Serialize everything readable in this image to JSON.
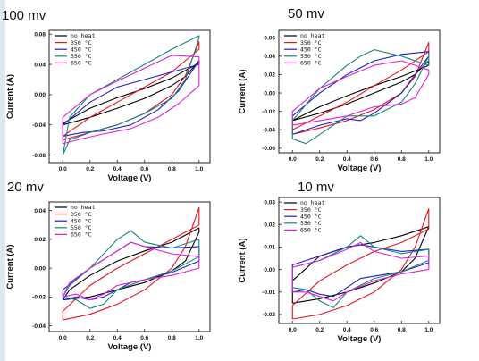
{
  "chart_data": [
    {
      "type": "line",
      "title": "100 mv",
      "xlabel": "Voltage (V)",
      "ylabel": "Current (A)",
      "xlim": [
        -0.1,
        1.08
      ],
      "ylim": [
        -0.09,
        0.085
      ],
      "xticks": [
        0.0,
        0.2,
        0.4,
        0.6,
        0.8,
        1.0
      ],
      "xtick_labels": [
        "0.0",
        "0.2",
        "0.4",
        "0.6",
        "0.8",
        "1.0"
      ],
      "yticks": [
        -0.08,
        -0.04,
        0.0,
        0.04,
        0.08
      ],
      "ytick_labels": [
        "-0.08",
        "-0.04",
        "0.00",
        "0.04",
        "0.08"
      ],
      "legend_position": "top-left",
      "series": [
        {
          "name": "no heat",
          "color": "#000000",
          "x": [
            0.0,
            0.2,
            0.4,
            0.6,
            0.8,
            0.9,
            1.0,
            1.0,
            0.8,
            0.6,
            0.4,
            0.2,
            0.05,
            0.0,
            0.0
          ],
          "y": [
            -0.04,
            -0.03,
            -0.018,
            -0.005,
            0.012,
            0.024,
            0.045,
            0.042,
            0.022,
            0.008,
            -0.004,
            -0.018,
            -0.033,
            -0.038,
            -0.04
          ]
        },
        {
          "name": "350 °C",
          "color": "#e8141f",
          "x": [
            0.0,
            0.2,
            0.4,
            0.6,
            0.8,
            0.9,
            1.0,
            1.0,
            0.8,
            0.6,
            0.4,
            0.2,
            0.0,
            0.0
          ],
          "y": [
            -0.06,
            -0.05,
            -0.04,
            -0.025,
            0.0,
            0.025,
            0.07,
            0.06,
            0.03,
            0.01,
            -0.01,
            -0.03,
            -0.055,
            -0.06
          ]
        },
        {
          "name": "450 °C",
          "color": "#1e1ec8",
          "x": [
            0.0,
            0.15,
            0.3,
            0.5,
            0.7,
            0.85,
            1.0,
            1.0,
            0.8,
            0.6,
            0.4,
            0.2,
            0.0,
            0.0
          ],
          "y": [
            -0.055,
            -0.05,
            -0.048,
            -0.04,
            -0.02,
            0.005,
            0.045,
            0.04,
            0.03,
            0.02,
            0.01,
            -0.01,
            -0.04,
            -0.055
          ]
        },
        {
          "name": "550 °C",
          "color": "#16857a",
          "x": [
            0.0,
            0.05,
            0.2,
            0.4,
            0.6,
            0.8,
            0.9,
            1.0,
            1.0,
            0.8,
            0.6,
            0.4,
            0.2,
            0.05,
            0.0
          ],
          "y": [
            -0.08,
            -0.06,
            -0.05,
            -0.04,
            -0.025,
            -0.005,
            0.02,
            0.075,
            0.078,
            0.06,
            0.04,
            0.02,
            0.0,
            -0.03,
            -0.08
          ]
        },
        {
          "name": "650 °C",
          "color": "#e020d8",
          "x": [
            0.0,
            0.15,
            0.3,
            0.5,
            0.7,
            0.85,
            1.0,
            1.0,
            0.8,
            0.6,
            0.4,
            0.2,
            0.0,
            0.0
          ],
          "y": [
            -0.065,
            -0.058,
            -0.052,
            -0.045,
            -0.03,
            -0.012,
            0.012,
            0.05,
            0.052,
            0.035,
            0.018,
            0.0,
            -0.03,
            -0.065
          ]
        }
      ]
    },
    {
      "type": "line",
      "title": "50 mv",
      "xlabel": "Voltage (V)",
      "ylabel": "Current (A)",
      "xlim": [
        -0.1,
        1.08
      ],
      "ylim": [
        -0.065,
        0.068
      ],
      "xticks": [
        0.0,
        0.2,
        0.4,
        0.6,
        0.8,
        1.0
      ],
      "xtick_labels": [
        "0.0",
        "0.2",
        "0.4",
        "0.6",
        "0.8",
        "1.0"
      ],
      "yticks": [
        -0.06,
        -0.04,
        -0.02,
        0.0,
        0.02,
        0.04,
        0.06
      ],
      "ytick_labels": [
        "-0.06",
        "-0.04",
        "-0.02",
        "0.00",
        "0.02",
        "0.04",
        "0.06"
      ],
      "legend_position": "top-left",
      "series": [
        {
          "name": "no heat",
          "color": "#000000",
          "x": [
            0.0,
            0.2,
            0.4,
            0.6,
            0.8,
            0.9,
            1.0,
            1.0,
            0.8,
            0.6,
            0.4,
            0.2,
            0.0,
            0.0
          ],
          "y": [
            -0.03,
            -0.022,
            -0.012,
            0.0,
            0.012,
            0.02,
            0.035,
            0.03,
            0.018,
            0.008,
            -0.003,
            -0.015,
            -0.03,
            -0.03
          ]
        },
        {
          "name": "350 °C",
          "color": "#e8141f",
          "x": [
            0.0,
            0.2,
            0.4,
            0.6,
            0.8,
            0.9,
            1.0,
            1.0,
            0.8,
            0.6,
            0.4,
            0.2,
            0.0,
            0.0
          ],
          "y": [
            -0.045,
            -0.038,
            -0.03,
            -0.018,
            0.0,
            0.018,
            0.055,
            0.045,
            0.025,
            0.008,
            -0.01,
            -0.025,
            -0.04,
            -0.045
          ]
        },
        {
          "name": "450 °C",
          "color": "#1e1ec8",
          "x": [
            0.0,
            0.2,
            0.4,
            0.5,
            0.6,
            0.8,
            0.9,
            1.0,
            1.0,
            0.8,
            0.6,
            0.4,
            0.2,
            0.0,
            0.0
          ],
          "y": [
            -0.045,
            -0.035,
            -0.028,
            -0.03,
            -0.022,
            0.0,
            0.02,
            0.04,
            0.045,
            0.042,
            0.035,
            0.02,
            0.0,
            -0.025,
            -0.045
          ]
        },
        {
          "name": "550 °C",
          "color": "#16857a",
          "x": [
            0.0,
            0.1,
            0.2,
            0.4,
            0.6,
            0.8,
            0.9,
            1.0,
            1.0,
            0.9,
            0.8,
            0.6,
            0.5,
            0.4,
            0.2,
            0.0,
            0.0
          ],
          "y": [
            -0.05,
            -0.055,
            -0.045,
            -0.025,
            -0.025,
            -0.01,
            0.01,
            0.04,
            0.03,
            0.035,
            0.04,
            0.047,
            0.04,
            0.03,
            0.005,
            -0.03,
            -0.05
          ]
        },
        {
          "name": "650 °C",
          "color": "#e020d8",
          "x": [
            0.0,
            0.2,
            0.4,
            0.6,
            0.8,
            0.9,
            1.0,
            1.0,
            0.8,
            0.6,
            0.4,
            0.2,
            0.0,
            0.0
          ],
          "y": [
            -0.035,
            -0.03,
            -0.025,
            -0.015,
            -0.012,
            -0.005,
            0.02,
            0.025,
            0.035,
            0.03,
            0.018,
            0.005,
            -0.02,
            -0.035
          ]
        }
      ]
    },
    {
      "type": "line",
      "title": "20 mv",
      "xlabel": "Voltage (V)",
      "ylabel": "Current (A)",
      "xlim": [
        -0.1,
        1.08
      ],
      "ylim": [
        -0.044,
        0.046
      ],
      "xticks": [
        0.0,
        0.2,
        0.4,
        0.6,
        0.8,
        1.0
      ],
      "xtick_labels": [
        "0.0",
        "0.2",
        "0.4",
        "0.6",
        "0.8",
        "1.0"
      ],
      "yticks": [
        -0.04,
        -0.02,
        0.0,
        0.02,
        0.04
      ],
      "ytick_labels": [
        "-0.04",
        "-0.02",
        "0.00",
        "0.02",
        "0.04"
      ],
      "legend_position": "top-left",
      "series": [
        {
          "name": "no heat",
          "color": "#000000",
          "x": [
            0.0,
            0.2,
            0.4,
            0.6,
            0.8,
            0.9,
            1.0,
            1.0,
            0.8,
            0.6,
            0.4,
            0.2,
            0.05,
            0.0,
            0.0
          ],
          "y": [
            -0.022,
            -0.02,
            -0.015,
            -0.01,
            -0.002,
            0.005,
            0.025,
            0.028,
            0.018,
            0.012,
            0.005,
            -0.005,
            -0.015,
            -0.022,
            -0.022
          ]
        },
        {
          "name": "350 °C",
          "color": "#e8141f",
          "x": [
            0.0,
            0.2,
            0.4,
            0.6,
            0.8,
            0.9,
            1.0,
            1.0,
            0.8,
            0.6,
            0.4,
            0.2,
            0.0,
            0.0
          ],
          "y": [
            -0.036,
            -0.032,
            -0.025,
            -0.015,
            0.0,
            0.015,
            0.042,
            0.03,
            0.02,
            0.01,
            0.0,
            -0.012,
            -0.03,
            -0.036
          ]
        },
        {
          "name": "450 °C",
          "color": "#1e1ec8",
          "x": [
            0.0,
            0.1,
            0.2,
            0.3,
            0.4,
            0.5,
            0.6,
            0.8,
            1.0,
            1.0,
            0.8,
            0.6,
            0.5,
            0.4,
            0.2,
            0.0,
            0.0
          ],
          "y": [
            -0.022,
            -0.02,
            -0.022,
            -0.02,
            -0.015,
            -0.01,
            -0.008,
            -0.003,
            0.005,
            0.015,
            0.014,
            0.015,
            0.018,
            0.012,
            0.0,
            -0.015,
            -0.022
          ]
        },
        {
          "name": "550 °C",
          "color": "#16857a",
          "x": [
            0.0,
            0.1,
            0.2,
            0.3,
            0.4,
            0.6,
            0.8,
            1.0,
            1.0,
            0.8,
            0.6,
            0.5,
            0.4,
            0.2,
            0.05,
            0.0
          ],
          "y": [
            -0.02,
            -0.022,
            -0.028,
            -0.025,
            -0.015,
            -0.008,
            -0.002,
            0.008,
            0.02,
            0.014,
            0.018,
            0.026,
            0.02,
            0.0,
            -0.012,
            -0.02
          ]
        },
        {
          "name": "650 °C",
          "color": "#e020d8",
          "x": [
            0.0,
            0.1,
            0.2,
            0.3,
            0.4,
            0.6,
            0.8,
            1.0,
            1.0,
            0.8,
            0.6,
            0.5,
            0.4,
            0.2,
            0.05,
            0.0
          ],
          "y": [
            -0.02,
            -0.018,
            -0.022,
            -0.018,
            -0.012,
            -0.008,
            -0.005,
            0.0,
            0.008,
            0.01,
            0.015,
            0.018,
            0.012,
            0.0,
            -0.01,
            -0.02
          ]
        }
      ]
    },
    {
      "type": "line",
      "title": "10 mv",
      "xlabel": "Voltage (V)",
      "ylabel": "Current (A)",
      "xlim": [
        -0.1,
        1.08
      ],
      "ylim": [
        -0.024,
        0.032
      ],
      "xticks": [
        0.0,
        0.2,
        0.4,
        0.6,
        0.8,
        1.0
      ],
      "xtick_labels": [
        "0.0",
        "0.2",
        "0.4",
        "0.6",
        "0.8",
        "1.0"
      ],
      "yticks": [
        -0.02,
        -0.01,
        0.0,
        0.01,
        0.02,
        0.03
      ],
      "ytick_labels": [
        "-0.02",
        "-0.01",
        "0.00",
        "0.01",
        "0.02",
        "0.03"
      ],
      "legend_position": "top-left",
      "series": [
        {
          "name": "no heat",
          "color": "#000000",
          "x": [
            0.0,
            0.2,
            0.4,
            0.6,
            0.8,
            0.9,
            1.0,
            1.0,
            0.8,
            0.6,
            0.4,
            0.2,
            0.0,
            0.0
          ],
          "y": [
            -0.015,
            -0.013,
            -0.01,
            -0.006,
            -0.001,
            0.005,
            0.019,
            0.019,
            0.015,
            0.012,
            0.01,
            0.006,
            -0.005,
            -0.015
          ]
        },
        {
          "name": "350 °C",
          "color": "#e8141f",
          "x": [
            0.0,
            0.2,
            0.4,
            0.6,
            0.8,
            0.9,
            1.0,
            1.0,
            0.8,
            0.6,
            0.4,
            0.2,
            0.0,
            0.0
          ],
          "y": [
            -0.022,
            -0.02,
            -0.016,
            -0.01,
            0.0,
            0.01,
            0.027,
            0.018,
            0.012,
            0.008,
            0.002,
            -0.005,
            -0.016,
            -0.022
          ]
        },
        {
          "name": "450 °C",
          "color": "#1e1ec8",
          "x": [
            0.0,
            0.1,
            0.2,
            0.3,
            0.4,
            0.5,
            0.6,
            0.8,
            1.0,
            1.0,
            0.8,
            0.6,
            0.5,
            0.4,
            0.2,
            0.0,
            0.0
          ],
          "y": [
            -0.01,
            -0.009,
            -0.011,
            -0.012,
            -0.008,
            -0.004,
            -0.003,
            -0.001,
            0.003,
            0.009,
            0.008,
            0.01,
            0.011,
            0.01,
            0.006,
            0.002,
            -0.01
          ]
        },
        {
          "name": "550 °C",
          "color": "#16857a",
          "x": [
            0.0,
            0.1,
            0.2,
            0.3,
            0.4,
            0.6,
            0.8,
            1.0,
            1.0,
            0.8,
            0.6,
            0.5,
            0.4,
            0.2,
            0.0,
            0.0
          ],
          "y": [
            -0.008,
            -0.009,
            -0.014,
            -0.017,
            -0.01,
            -0.004,
            -0.001,
            0.004,
            0.009,
            0.007,
            0.01,
            0.015,
            0.01,
            0.004,
            0.001,
            -0.008
          ]
        },
        {
          "name": "650 °C",
          "color": "#e020d8",
          "x": [
            0.0,
            0.1,
            0.2,
            0.3,
            0.4,
            0.6,
            0.8,
            1.0,
            1.0,
            0.8,
            0.6,
            0.5,
            0.4,
            0.2,
            0.0,
            0.0
          ],
          "y": [
            -0.01,
            -0.01,
            -0.012,
            -0.014,
            -0.01,
            -0.005,
            -0.002,
            0.0,
            0.006,
            0.005,
            0.008,
            0.012,
            0.009,
            0.004,
            0.001,
            -0.01
          ]
        }
      ]
    }
  ]
}
